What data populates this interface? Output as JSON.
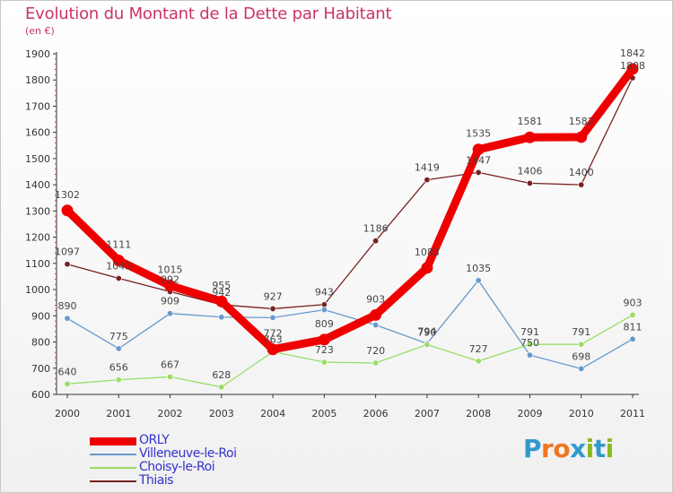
{
  "header": {
    "title": "Evolution du Montant de la Dette par Habitant",
    "subtitle": "(en €)"
  },
  "logo": {
    "letters": [
      "P",
      "r",
      "o",
      "x",
      "i",
      "t",
      "i"
    ],
    "colors": [
      "#3399cc",
      "#ee7722",
      "#ee7722",
      "#3399cc",
      "#88bb22",
      "#3399cc",
      "#88bb22"
    ]
  },
  "chart_data": {
    "type": "line",
    "x": [
      "2000",
      "2001",
      "2002",
      "2003",
      "2004",
      "2005",
      "2006",
      "2007",
      "2008",
      "2009",
      "2010",
      "2011"
    ],
    "ylim": [
      600,
      1900
    ],
    "yticks": [
      "600",
      "700",
      "800",
      "900",
      "1000",
      "1100",
      "1200",
      "1300",
      "1400",
      "1500",
      "1600",
      "1700",
      "1800",
      "1900"
    ],
    "grid": false,
    "legend_position": "bottom-left",
    "series": [
      {
        "name": "ORLY",
        "color": "#ee0000",
        "values": [
          1302,
          1111,
          1015,
          955,
          772,
          809,
          903,
          1083,
          1535,
          1581,
          1582,
          1842
        ],
        "labels": [
          "1302",
          "1111",
          "1015",
          "955",
          "772",
          "809",
          "903",
          "1083",
          "1535",
          "1581",
          "1582",
          "1842"
        ]
      },
      {
        "name": "Villeneuve-le-Roi",
        "color": "#6699cc",
        "values": [
          890,
          775,
          909,
          895,
          893,
          923,
          865,
          794,
          1035,
          750,
          698,
          811
        ],
        "labels": [
          "890",
          "775",
          "909",
          "",
          "",
          "",
          "",
          "794",
          "1035",
          "750",
          "698",
          "811"
        ]
      },
      {
        "name": "Choisy-le-Roi",
        "color": "#99dd66",
        "values": [
          640,
          656,
          667,
          628,
          763,
          723,
          720,
          790,
          727,
          791,
          791,
          903
        ],
        "labels": [
          "640",
          "656",
          "667",
          "628",
          "763",
          "723",
          "720",
          "790",
          "727",
          "791",
          "791",
          "903"
        ]
      },
      {
        "name": "Thiais",
        "color": "#772222",
        "values": [
          1097,
          1043,
          992,
          942,
          927,
          943,
          1186,
          1419,
          1447,
          1406,
          1400,
          1808
        ],
        "labels": [
          "1097",
          "1043",
          "992",
          "942",
          "927",
          "943",
          "1186",
          "1419",
          "1447",
          "1406",
          "1400",
          "1808"
        ]
      }
    ]
  }
}
